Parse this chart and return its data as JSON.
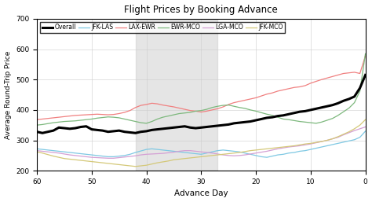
{
  "title": "Flight Prices by Booking Advance",
  "xlabel": "Advance Day",
  "ylabel": "Average Round-Trip Price",
  "xlim": [
    60,
    0
  ],
  "ylim": [
    200,
    700
  ],
  "yticks": [
    200,
    300,
    400,
    500,
    600,
    700
  ],
  "xticks": [
    60,
    50,
    40,
    30,
    20,
    10,
    0
  ],
  "shade_region": [
    27,
    42
  ],
  "series": {
    "Overall": {
      "color": "black",
      "lw": 2.2,
      "zorder": 5,
      "values_x": [
        60,
        59,
        58,
        57,
        56,
        55,
        54,
        53,
        52,
        51,
        50,
        49,
        48,
        47,
        46,
        45,
        44,
        43,
        42,
        41,
        40,
        39,
        38,
        37,
        36,
        35,
        34,
        33,
        32,
        31,
        30,
        29,
        28,
        27,
        26,
        25,
        24,
        23,
        22,
        21,
        20,
        19,
        18,
        17,
        16,
        15,
        14,
        13,
        12,
        11,
        10,
        9,
        8,
        7,
        6,
        5,
        4,
        3,
        2,
        1,
        0
      ],
      "values_y": [
        328,
        324,
        328,
        332,
        342,
        340,
        338,
        340,
        344,
        346,
        336,
        334,
        332,
        328,
        330,
        332,
        328,
        326,
        324,
        328,
        330,
        334,
        336,
        338,
        340,
        342,
        344,
        346,
        342,
        340,
        342,
        344,
        346,
        348,
        350,
        352,
        356,
        358,
        360,
        362,
        366,
        370,
        374,
        376,
        380,
        382,
        386,
        390,
        394,
        396,
        400,
        404,
        408,
        412,
        416,
        422,
        430,
        436,
        444,
        472,
        515
      ]
    },
    "JFK-LAS": {
      "color": "#7ec8e3",
      "lw": 0.9,
      "zorder": 2,
      "values_x": [
        60,
        59,
        58,
        57,
        56,
        55,
        54,
        53,
        52,
        51,
        50,
        49,
        48,
        47,
        46,
        45,
        44,
        43,
        42,
        41,
        40,
        39,
        38,
        37,
        36,
        35,
        34,
        33,
        32,
        31,
        30,
        29,
        28,
        27,
        26,
        25,
        24,
        23,
        22,
        21,
        20,
        19,
        18,
        17,
        16,
        15,
        14,
        13,
        12,
        11,
        10,
        9,
        8,
        7,
        6,
        5,
        4,
        3,
        2,
        1,
        0
      ],
      "values_y": [
        272,
        270,
        268,
        266,
        264,
        262,
        260,
        258,
        256,
        254,
        252,
        250,
        248,
        246,
        246,
        248,
        250,
        254,
        260,
        265,
        270,
        272,
        270,
        268,
        266,
        264,
        262,
        260,
        258,
        256,
        254,
        258,
        262,
        266,
        268,
        266,
        264,
        262,
        258,
        254,
        250,
        246,
        244,
        248,
        252,
        254,
        258,
        260,
        264,
        266,
        270,
        274,
        278,
        282,
        286,
        290,
        294,
        298,
        302,
        310,
        330
      ]
    },
    "LAX-EWR": {
      "color": "#f08080",
      "lw": 0.9,
      "zorder": 2,
      "values_x": [
        60,
        59,
        58,
        57,
        56,
        55,
        54,
        53,
        52,
        51,
        50,
        49,
        48,
        47,
        46,
        45,
        44,
        43,
        42,
        41,
        40,
        39,
        38,
        37,
        36,
        35,
        34,
        33,
        32,
        31,
        30,
        29,
        28,
        27,
        26,
        25,
        24,
        23,
        22,
        21,
        20,
        19,
        18,
        17,
        16,
        15,
        14,
        13,
        12,
        11,
        10,
        9,
        8,
        7,
        6,
        5,
        4,
        3,
        2,
        1,
        0
      ],
      "values_y": [
        368,
        370,
        372,
        374,
        376,
        378,
        380,
        382,
        383,
        384,
        385,
        386,
        385,
        384,
        385,
        388,
        392,
        398,
        408,
        415,
        418,
        422,
        420,
        416,
        413,
        410,
        406,
        402,
        398,
        396,
        393,
        396,
        400,
        404,
        410,
        418,
        424,
        428,
        432,
        436,
        440,
        446,
        452,
        456,
        462,
        466,
        470,
        474,
        476,
        480,
        488,
        494,
        500,
        505,
        510,
        515,
        520,
        522,
        524,
        520,
        578
      ]
    },
    "EWR-MCO": {
      "color": "#7db87d",
      "lw": 0.9,
      "zorder": 2,
      "values_x": [
        60,
        59,
        58,
        57,
        56,
        55,
        54,
        53,
        52,
        51,
        50,
        49,
        48,
        47,
        46,
        45,
        44,
        43,
        42,
        41,
        40,
        39,
        38,
        37,
        36,
        35,
        34,
        33,
        32,
        31,
        30,
        29,
        28,
        27,
        26,
        25,
        24,
        23,
        22,
        21,
        20,
        19,
        18,
        17,
        16,
        15,
        14,
        13,
        12,
        11,
        10,
        9,
        8,
        7,
        6,
        5,
        4,
        3,
        2,
        1,
        0
      ],
      "values_y": [
        350,
        352,
        355,
        358,
        360,
        362,
        363,
        364,
        366,
        368,
        370,
        373,
        375,
        377,
        376,
        374,
        370,
        366,
        362,
        358,
        356,
        362,
        370,
        376,
        380,
        384,
        388,
        390,
        392,
        396,
        398,
        402,
        408,
        412,
        415,
        416,
        412,
        408,
        405,
        400,
        396,
        391,
        386,
        382,
        376,
        370,
        368,
        365,
        362,
        360,
        358,
        356,
        360,
        366,
        372,
        382,
        394,
        406,
        424,
        462,
        585
      ]
    },
    "LGA-MCO": {
      "color": "#d4a0d4",
      "lw": 0.9,
      "zorder": 2,
      "values_x": [
        60,
        59,
        58,
        57,
        56,
        55,
        54,
        53,
        52,
        51,
        50,
        49,
        48,
        47,
        46,
        45,
        44,
        43,
        42,
        41,
        40,
        39,
        38,
        37,
        36,
        35,
        34,
        33,
        32,
        31,
        30,
        29,
        28,
        27,
        26,
        25,
        24,
        23,
        22,
        21,
        20,
        19,
        18,
        17,
        16,
        15,
        14,
        13,
        12,
        11,
        10,
        9,
        8,
        7,
        6,
        5,
        4,
        3,
        2,
        1,
        0
      ],
      "values_y": [
        266,
        264,
        262,
        260,
        258,
        255,
        252,
        250,
        248,
        246,
        244,
        243,
        242,
        241,
        241,
        243,
        245,
        247,
        249,
        252,
        254,
        255,
        256,
        257,
        259,
        261,
        264,
        266,
        266,
        264,
        262,
        260,
        258,
        255,
        252,
        250,
        249,
        250,
        252,
        255,
        258,
        261,
        264,
        268,
        272,
        275,
        278,
        280,
        282,
        285,
        288,
        292,
        296,
        300,
        305,
        310,
        318,
        325,
        332,
        338,
        344
      ]
    },
    "JFK-MCO": {
      "color": "#d4c878",
      "lw": 0.9,
      "zorder": 2,
      "values_x": [
        60,
        59,
        58,
        57,
        56,
        55,
        54,
        53,
        52,
        51,
        50,
        49,
        48,
        47,
        46,
        45,
        44,
        43,
        42,
        41,
        40,
        39,
        38,
        37,
        36,
        35,
        34,
        33,
        32,
        31,
        30,
        29,
        28,
        27,
        26,
        25,
        24,
        23,
        22,
        21,
        20,
        19,
        18,
        17,
        16,
        15,
        14,
        13,
        12,
        11,
        10,
        9,
        8,
        7,
        6,
        5,
        4,
        3,
        2,
        1,
        0
      ],
      "values_y": [
        262,
        258,
        253,
        248,
        244,
        240,
        238,
        236,
        234,
        232,
        230,
        228,
        226,
        224,
        222,
        220,
        218,
        216,
        214,
        216,
        218,
        222,
        226,
        229,
        232,
        236,
        238,
        240,
        242,
        244,
        246,
        248,
        250,
        252,
        254,
        256,
        258,
        260,
        263,
        266,
        268,
        270,
        272,
        274,
        276,
        278,
        280,
        282,
        285,
        288,
        290,
        293,
        296,
        300,
        305,
        312,
        320,
        328,
        338,
        350,
        368
      ]
    }
  },
  "legend_order": [
    "Overall",
    "JFK-LAS",
    "LAX-EWR",
    "EWR-MCO",
    "LGA-MCO",
    "JFK-MCO"
  ]
}
